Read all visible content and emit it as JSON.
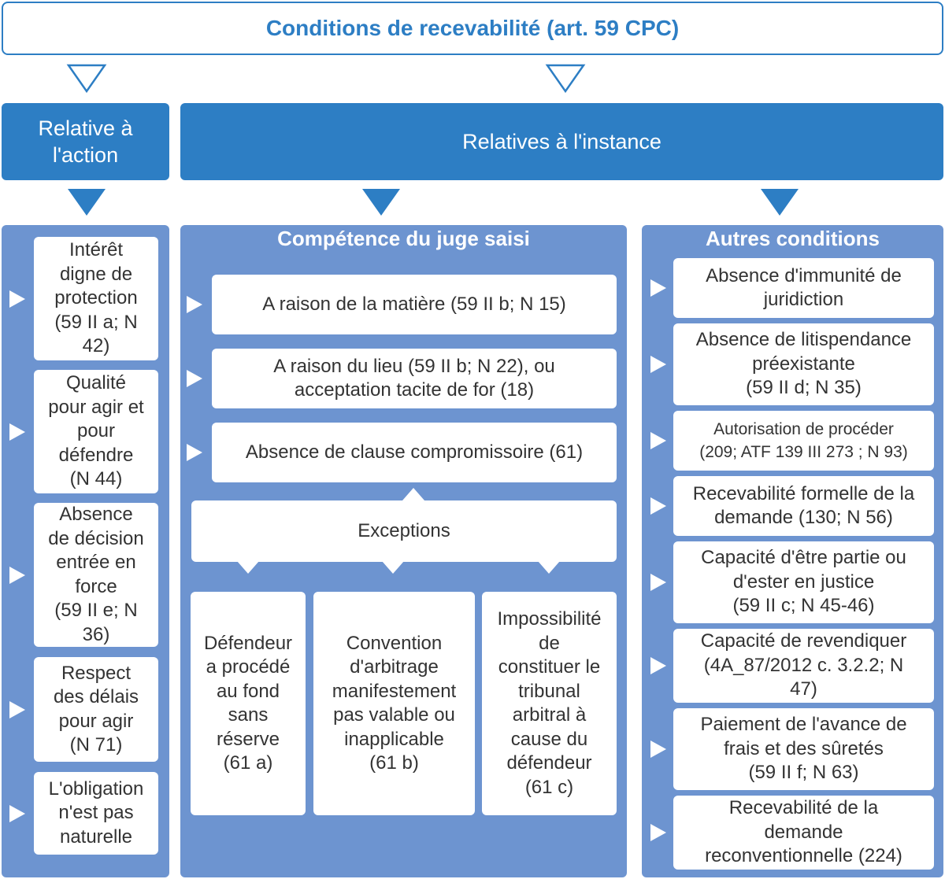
{
  "title": "Conditions de recevabilité (art. 59 CPC)",
  "headers": {
    "action": [
      "Relative à",
      "l'action"
    ],
    "instance": "Relatives à l'instance"
  },
  "panels": {
    "competence_title": "Compétence du juge saisi",
    "autres_title": "Autres conditions"
  },
  "action_items": [
    [
      "Intérêt",
      "digne de",
      "protection",
      "(59 II a; N",
      "42)"
    ],
    [
      "Qualité",
      "pour agir et",
      "pour",
      "défendre",
      "(N 44)"
    ],
    [
      "Absence",
      "de décision",
      "entrée en",
      "force",
      "(59 II e; N",
      "36)"
    ],
    [
      "Respect",
      "des délais",
      "pour agir",
      "(N 71)"
    ],
    [
      "L'obligation",
      "n'est  pas",
      "naturelle"
    ]
  ],
  "competence_items": [
    [
      "A raison de la matière (59 II  b; N 15)"
    ],
    [
      "A raison du lieu (59 II b; N 22), ou",
      "acceptation tacite de for (18)"
    ],
    [
      "Absence de clause compromissoire (61)"
    ]
  ],
  "exceptions_label": "Exceptions",
  "exception_items": [
    [
      "Défendeur",
      "a procédé",
      "au fond",
      "sans",
      "réserve",
      "(61 a)"
    ],
    [
      "Convention",
      "d'arbitrage",
      "manifestement",
      "pas valable ou",
      "inapplicable",
      "(61 b)"
    ],
    [
      "Impossibilité",
      "de",
      "constituer le",
      "tribunal",
      "arbitral à",
      "cause du",
      "défendeur",
      "(61 c)"
    ]
  ],
  "autres_items": [
    [
      "Absence d'immunité de",
      "juridiction"
    ],
    [
      "Absence de litispendance",
      "préexistante",
      "(59 II d; N 35)"
    ],
    [
      "Autorisation de procéder",
      "(209; ATF 139 III 273 ; N 93)"
    ],
    [
      "Recevabilité formelle de la",
      "demande (130; N 56)"
    ],
    [
      "Capacité d'être partie ou",
      "d'ester en justice",
      "(59 II  c; N 45-46)"
    ],
    [
      "Capacité de revendiquer",
      "(4A_87/2012 c. 3.2.2; N",
      "47)"
    ],
    [
      "Paiement de l'avance de",
      "frais et des sûretés",
      "(59 II f; N 63)"
    ],
    [
      "Recevabilité de la",
      "demande",
      "reconventionnelle (224)"
    ]
  ],
  "colors": {
    "primary": "#2d7ec4",
    "panel": "#6d94d0",
    "box": "#ffffff"
  }
}
